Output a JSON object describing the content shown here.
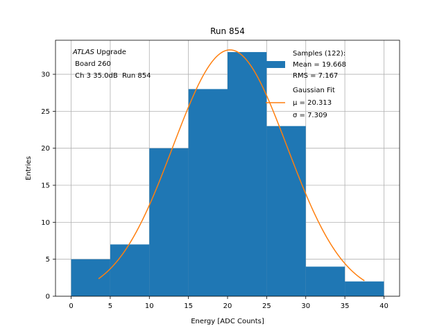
{
  "chart_data": {
    "type": "bar",
    "title": "Run 854",
    "xlabel": "Energy [ADC Counts]",
    "ylabel": "Entries",
    "xlim": [
      -2,
      42
    ],
    "ylim": [
      0,
      34.6
    ],
    "x_ticks": [
      0,
      5,
      10,
      15,
      20,
      25,
      30,
      35,
      40
    ],
    "y_ticks": [
      0,
      5,
      10,
      15,
      20,
      25,
      30
    ],
    "grid": true,
    "bin_edges": [
      0,
      5,
      10,
      15,
      20,
      25,
      30,
      35,
      40
    ],
    "counts": [
      5,
      7,
      20,
      28,
      33,
      23,
      4,
      2
    ],
    "hist_color": "#1f77b4",
    "fit": {
      "type": "gaussian",
      "mu": 20.313,
      "sigma": 7.309,
      "amplitude": 33.3,
      "x_range": [
        3.5,
        37.5
      ],
      "color": "#ff7f0e"
    },
    "annotation_lines": [
      "ATLAS Upgrade",
      " Board 260",
      " Ch 3 35.0dB  Run 854"
    ],
    "legend": {
      "position": "top-right",
      "samples_lines": [
        "Samples (122):",
        "Mean = 19.668",
        "RMS = 7.167"
      ],
      "fit_lines": [
        "Gaussian Fit",
        "μ = 20.313",
        "σ = 7.309"
      ]
    }
  }
}
